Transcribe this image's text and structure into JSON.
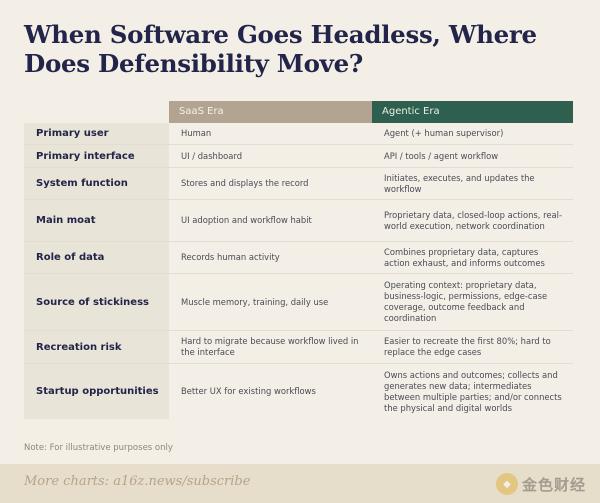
{
  "title": "When Software Goes Headless, Where Does Defensibility Move?",
  "columns": {
    "blank": "",
    "saas": "SaaS Era",
    "agentic": "Agentic Era"
  },
  "colors": {
    "saas_header": "#b2a491",
    "agentic_header": "#2f5f4f",
    "label_bg": "#e9e4d8",
    "title": "#22244a"
  },
  "rows": [
    {
      "label": "Primary user",
      "saas": "Human",
      "agentic": "Agent (+ human supervisor)"
    },
    {
      "label": "Primary interface",
      "saas": "UI / dashboard",
      "agentic": "API / tools / agent workflow"
    },
    {
      "label": "System function",
      "saas": "Stores and displays the record",
      "agentic": "Initiates, executes, and updates the workflow"
    },
    {
      "label": "Main moat",
      "saas": "UI adoption and workflow habit",
      "agentic": "Proprietary data, closed-loop actions, real-world execution, network coordination"
    },
    {
      "label": "Role of data",
      "saas": "Records human activity",
      "agentic": "Combines proprietary data, captures action exhaust, and informs outcomes"
    },
    {
      "label": "Source of stickiness",
      "saas": "Muscle memory, training, daily use",
      "agentic": "Operating context: proprietary data, business-logic, permissions, edge-case coverage, outcome feedback and coordination"
    },
    {
      "label": "Recreation risk",
      "saas": "Hard to migrate because workflow lived in the interface",
      "agentic": "Easier to recreate the first 80%; hard to replace the edge cases"
    },
    {
      "label": "Startup opportunities",
      "saas": "Better UX for existing workflows",
      "agentic": "Owns actions and outcomes; collects and generates new data; intermediates between multiple parties; and/or connects the physical and digital worlds"
    }
  ],
  "note": "Note: For illustrative purposes only",
  "footer": {
    "more": "More charts: a16z.news/subscribe",
    "watermark": "金色财经"
  }
}
